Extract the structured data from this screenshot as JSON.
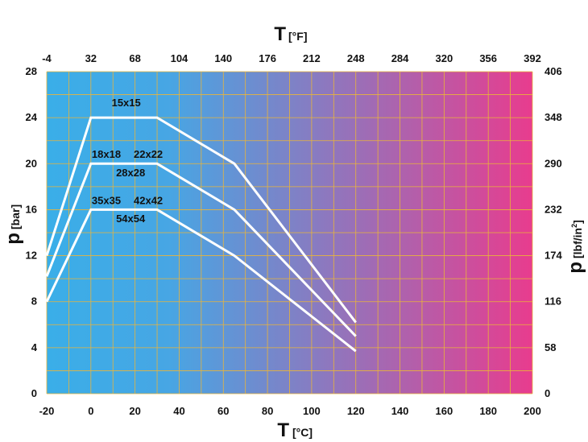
{
  "chart_data": {
    "type": "line",
    "x_axis_bottom": {
      "letter": "T",
      "unit": "[°C]",
      "ticks": [
        "-20",
        "0",
        "20",
        "40",
        "60",
        "80",
        "100",
        "120",
        "140",
        "160",
        "180",
        "200"
      ],
      "range": [
        -20,
        200
      ]
    },
    "x_axis_top": {
      "letter": "T",
      "unit": "[°F]",
      "ticks": [
        "-4",
        "32",
        "68",
        "104",
        "140",
        "176",
        "212",
        "248",
        "284",
        "320",
        "356",
        "392"
      ]
    },
    "y_axis_left": {
      "letter": "p",
      "unit": "[bar]",
      "ticks": [
        "0",
        "4",
        "8",
        "12",
        "16",
        "20",
        "24",
        "28"
      ],
      "range": [
        0,
        28
      ]
    },
    "y_axis_right": {
      "letter": "p",
      "unit_base": "[lbf/in",
      "unit_sup": "2",
      "unit_close": "]",
      "ticks": [
        "0",
        "58",
        "116",
        "174",
        "232",
        "290",
        "348",
        "406"
      ]
    },
    "grid": true,
    "background_gradient": [
      "#3aaee8",
      "#e83c8e"
    ],
    "line_color": "#ffffff",
    "grid_color": "#e9b43a",
    "series": [
      {
        "points": [
          [
            -20,
            12
          ],
          [
            0,
            24
          ],
          [
            30,
            24
          ],
          [
            65,
            20
          ],
          [
            120,
            6.2
          ]
        ],
        "labels": [
          {
            "text": "15x15",
            "x": 16,
            "y": 25
          }
        ]
      },
      {
        "points": [
          [
            -20,
            10.2
          ],
          [
            0,
            20
          ],
          [
            30,
            20
          ],
          [
            65,
            16
          ],
          [
            120,
            5
          ]
        ],
        "labels": [
          {
            "text": "18x18",
            "x": 7,
            "y": 20.5
          },
          {
            "text": "22x22",
            "x": 26,
            "y": 20.5
          },
          {
            "text": "28x28",
            "x": 18,
            "y": 18.9
          }
        ]
      },
      {
        "points": [
          [
            -20,
            8
          ],
          [
            0,
            16
          ],
          [
            30,
            16
          ],
          [
            65,
            12
          ],
          [
            120,
            3.7
          ]
        ],
        "labels": [
          {
            "text": "35x35",
            "x": 7,
            "y": 16.5
          },
          {
            "text": "42x42",
            "x": 26,
            "y": 16.5
          },
          {
            "text": "54x54",
            "x": 18,
            "y": 14.9
          }
        ]
      }
    ]
  }
}
